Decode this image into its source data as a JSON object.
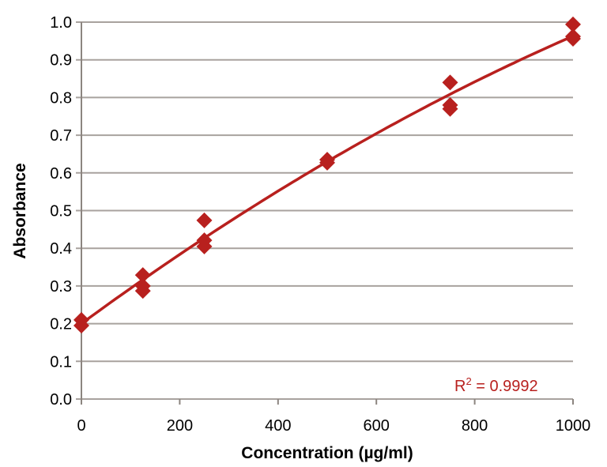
{
  "chart_data": {
    "type": "scatter",
    "title": "",
    "xlabel": "Concentration (µg/ml)",
    "ylabel": "Absorbance",
    "xlim": [
      0,
      1000
    ],
    "ylim": [
      0,
      1.0
    ],
    "xticks": [
      "0",
      "200",
      "400",
      "600",
      "800",
      "1000"
    ],
    "yticks": [
      "0.0",
      "0.1",
      "0.2",
      "0.3",
      "0.4",
      "0.5",
      "0.6",
      "0.7",
      "0.8",
      "0.9",
      "1.0"
    ],
    "grid": "horizontal",
    "marker": "diamond",
    "color": "#B8201E",
    "points": [
      {
        "x": 0,
        "y": 0.21
      },
      {
        "x": 0,
        "y": 0.195
      },
      {
        "x": 125,
        "y": 0.329
      },
      {
        "x": 125,
        "y": 0.3
      },
      {
        "x": 125,
        "y": 0.287
      },
      {
        "x": 250,
        "y": 0.474
      },
      {
        "x": 250,
        "y": 0.421
      },
      {
        "x": 250,
        "y": 0.405
      },
      {
        "x": 500,
        "y": 0.635
      },
      {
        "x": 500,
        "y": 0.627
      },
      {
        "x": 750,
        "y": 0.84
      },
      {
        "x": 750,
        "y": 0.78
      },
      {
        "x": 750,
        "y": 0.77
      },
      {
        "x": 1000,
        "y": 0.994
      },
      {
        "x": 1000,
        "y": 0.962
      },
      {
        "x": 1000,
        "y": 0.956
      }
    ],
    "trendline": {
      "type": "polynomial",
      "order": 2,
      "coefficients": [
        0.2,
        0.000957,
        -1.94e-07
      ]
    },
    "annotation": {
      "r2_label": "R",
      "r2_sup": "2",
      "r2_value": " = 0.9992"
    }
  }
}
